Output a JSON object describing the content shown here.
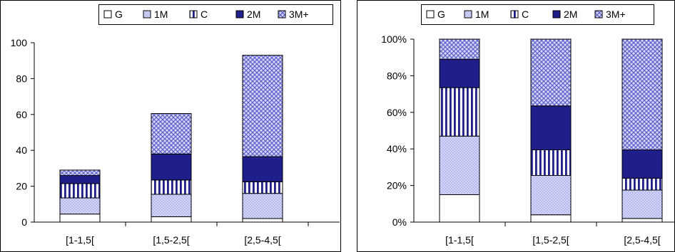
{
  "legend": {
    "items": [
      {
        "label": "G",
        "pattern": "white"
      },
      {
        "label": "1M",
        "pattern": "dots"
      },
      {
        "label": "C",
        "pattern": "vstripes"
      },
      {
        "label": "2M",
        "pattern": "solid"
      },
      {
        "label": "3M+",
        "pattern": "checker"
      }
    ]
  },
  "colors": {
    "navy": "#1f1f8c",
    "lightBlue": "#8f93e6",
    "paleFill": "#d6d8fb",
    "border": "#000000",
    "white": "#ffffff"
  },
  "chart_data": [
    {
      "type": "bar",
      "stacked": true,
      "title": "",
      "xlabel": "",
      "ylabel": "",
      "categories": [
        "[1-1,5[",
        "[1,5-2,5[",
        "[2,5-4,5["
      ],
      "ylim": [
        0,
        100
      ],
      "yticks": [
        "0",
        "20",
        "40",
        "60",
        "80",
        "100"
      ],
      "series": [
        {
          "name": "G",
          "values": [
            4.5,
            3,
            2
          ]
        },
        {
          "name": "1M",
          "values": [
            9,
            12.5,
            14
          ]
        },
        {
          "name": "C",
          "values": [
            8,
            8,
            6.5
          ]
        },
        {
          "name": "2M",
          "values": [
            4.5,
            14.5,
            14
          ]
        },
        {
          "name": "3M+",
          "values": [
            3,
            22.5,
            56.5
          ]
        }
      ],
      "legend_position": "top-right"
    },
    {
      "type": "bar",
      "stacked": true,
      "title": "",
      "xlabel": "",
      "ylabel": "",
      "categories": [
        "[1-1,5[",
        "[1,5-2,5[",
        "[2,5-4,5["
      ],
      "ylim": [
        0,
        100
      ],
      "yticks": [
        "0%",
        "20%",
        "40%",
        "60%",
        "80%",
        "100%"
      ],
      "series": [
        {
          "name": "G",
          "values": [
            15,
            4,
            2
          ]
        },
        {
          "name": "1M",
          "values": [
            32,
            21.5,
            15.5
          ]
        },
        {
          "name": "C",
          "values": [
            26.5,
            14,
            6.5
          ]
        },
        {
          "name": "2M",
          "values": [
            15.5,
            24,
            15.5
          ]
        },
        {
          "name": "3M+",
          "values": [
            11,
            36.5,
            60.5
          ]
        }
      ],
      "legend_position": "top-right"
    }
  ]
}
